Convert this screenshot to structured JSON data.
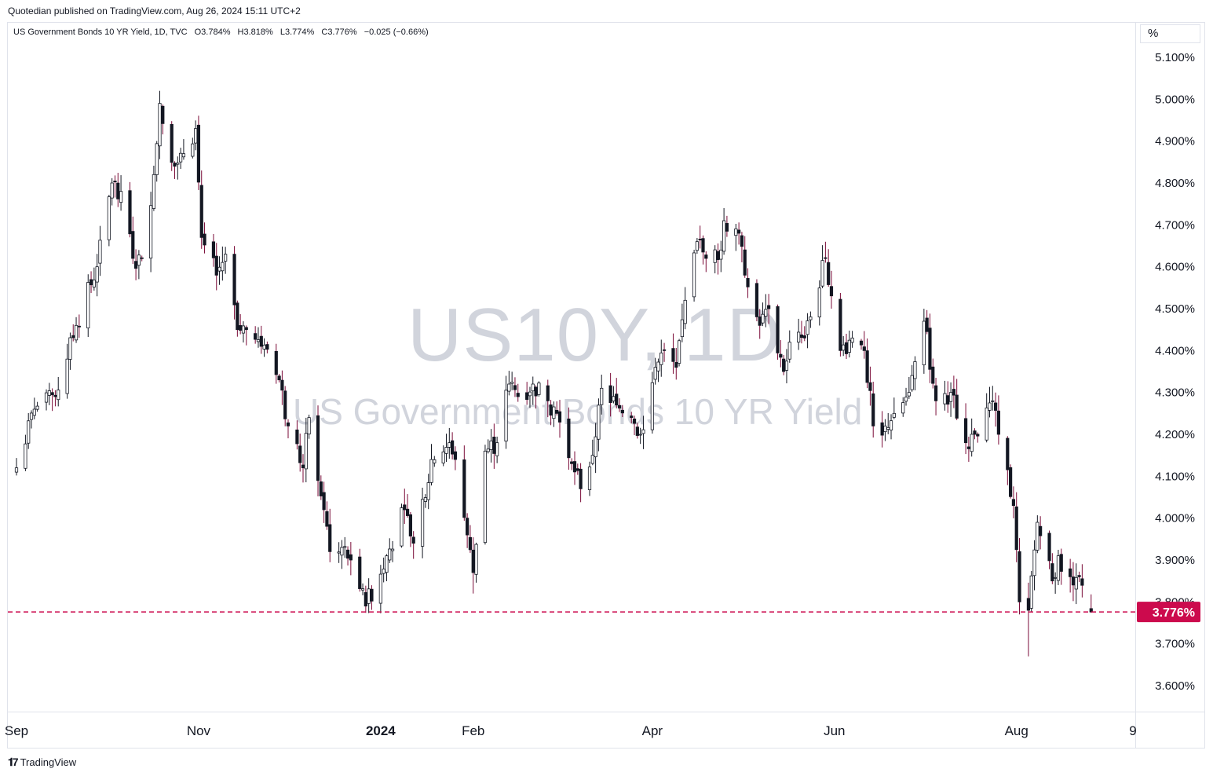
{
  "header": {
    "publisher": "Quotedian published on TradingView.com, Aug 26, 2024 15:11 UTC+2"
  },
  "legend": {
    "title": "US Government Bonds 10 YR Yield, 1D, TVC",
    "open": "O3.784%",
    "high": "H3.818%",
    "low": "L3.774%",
    "close": "C3.776%",
    "change": "−0.025 (−0.66%)"
  },
  "watermark": {
    "symbol": "US10Y, 1D",
    "name": "US Government Bonds 10 YR Yield"
  },
  "price_scale": {
    "unit": "%"
  },
  "footer": {
    "brand": "TradingView",
    "brand_icon": "tradingview-logo-icon"
  },
  "colors": {
    "up": "#ffffff",
    "down": "#7a0a37",
    "border": "#131722",
    "last_price": "#cc0a4d",
    "grid": "#e0e3eb"
  },
  "chart_data": {
    "type": "candlestick",
    "symbol": "US10Y",
    "interval": "1D",
    "ylim": [
      3.55,
      5.15
    ],
    "y_ticks": [
      3.6,
      3.7,
      3.8,
      3.9,
      4.0,
      4.1,
      4.2,
      4.3,
      4.4,
      4.5,
      4.6,
      4.7,
      4.8,
      4.9,
      5.0,
      5.1
    ],
    "y_tick_labels": [
      "3.600%",
      "3.700%",
      "3.800%",
      "3.900%",
      "4.000%",
      "4.100%",
      "4.200%",
      "4.300%",
      "4.400%",
      "4.500%",
      "4.600%",
      "4.700%",
      "4.800%",
      "4.900%",
      "5.000%",
      "5.100%"
    ],
    "x_range": [
      "2023-08-31",
      "2024-09-10"
    ],
    "x_ticks": [
      {
        "date": "2023-09-01",
        "label": "Sep",
        "bold": false
      },
      {
        "date": "2023-11-01",
        "label": "Nov",
        "bold": false
      },
      {
        "date": "2024-01-01",
        "label": "2024",
        "bold": true
      },
      {
        "date": "2024-02-01",
        "label": "Feb",
        "bold": false
      },
      {
        "date": "2024-04-01",
        "label": "Apr",
        "bold": false
      },
      {
        "date": "2024-06-01",
        "label": "Jun",
        "bold": false
      },
      {
        "date": "2024-08-01",
        "label": "Aug",
        "bold": false
      },
      {
        "date": "2024-09-09",
        "label": "9",
        "bold": false
      }
    ],
    "last_price": {
      "value": 3.776,
      "label": "3.776%"
    },
    "anchors": [
      [
        "2023-09-01",
        4.12
      ],
      [
        "2023-09-07",
        4.26
      ],
      [
        "2023-09-14",
        4.29
      ],
      [
        "2023-09-21",
        4.46
      ],
      [
        "2023-09-28",
        4.6
      ],
      [
        "2023-10-03",
        4.8
      ],
      [
        "2023-10-06",
        4.78
      ],
      [
        "2023-10-10",
        4.62
      ],
      [
        "2023-10-13",
        4.62
      ],
      [
        "2023-10-17",
        4.82
      ],
      [
        "2023-10-19",
        4.99
      ],
      [
        "2023-10-24",
        4.84
      ],
      [
        "2023-10-27",
        4.87
      ],
      [
        "2023-10-31",
        4.93
      ],
      [
        "2023-11-02",
        4.67
      ],
      [
        "2023-11-07",
        4.58
      ],
      [
        "2023-11-10",
        4.63
      ],
      [
        "2023-11-14",
        4.45
      ],
      [
        "2023-11-17",
        4.45
      ],
      [
        "2023-11-22",
        4.41
      ],
      [
        "2023-11-28",
        4.33
      ],
      [
        "2023-12-01",
        4.22
      ],
      [
        "2023-12-06",
        4.12
      ],
      [
        "2023-12-08",
        4.24
      ],
      [
        "2023-12-13",
        4.02
      ],
      [
        "2023-12-15",
        3.92
      ],
      [
        "2023-12-19",
        3.93
      ],
      [
        "2023-12-22",
        3.9
      ],
      [
        "2023-12-27",
        3.79
      ],
      [
        "2024-01-03",
        3.91
      ],
      [
        "2024-01-09",
        4.02
      ],
      [
        "2024-01-12",
        3.94
      ],
      [
        "2024-01-18",
        4.14
      ],
      [
        "2024-01-24",
        4.18
      ],
      [
        "2024-01-26",
        4.14
      ],
      [
        "2024-02-01",
        3.87
      ],
      [
        "2024-02-05",
        4.16
      ],
      [
        "2024-02-09",
        4.18
      ],
      [
        "2024-02-13",
        4.32
      ],
      [
        "2024-02-16",
        4.29
      ],
      [
        "2024-02-21",
        4.32
      ],
      [
        "2024-02-26",
        4.28
      ],
      [
        "2024-02-29",
        4.25
      ],
      [
        "2024-03-05",
        4.13
      ],
      [
        "2024-03-08",
        4.07
      ],
      [
        "2024-03-12",
        4.15
      ],
      [
        "2024-03-15",
        4.31
      ],
      [
        "2024-03-20",
        4.27
      ],
      [
        "2024-03-25",
        4.24
      ],
      [
        "2024-03-28",
        4.2
      ],
      [
        "2024-04-02",
        4.36
      ],
      [
        "2024-04-05",
        4.4
      ],
      [
        "2024-04-09",
        4.36
      ],
      [
        "2024-04-12",
        4.52
      ],
      [
        "2024-04-16",
        4.66
      ],
      [
        "2024-04-19",
        4.62
      ],
      [
        "2024-04-24",
        4.64
      ],
      [
        "2024-04-25",
        4.71
      ],
      [
        "2024-04-30",
        4.68
      ],
      [
        "2024-05-02",
        4.58
      ],
      [
        "2024-05-07",
        4.46
      ],
      [
        "2024-05-10",
        4.5
      ],
      [
        "2024-05-15",
        4.35
      ],
      [
        "2024-05-17",
        4.42
      ],
      [
        "2024-05-22",
        4.43
      ],
      [
        "2024-05-29",
        4.62
      ],
      [
        "2024-06-03",
        4.4
      ],
      [
        "2024-06-07",
        4.43
      ],
      [
        "2024-06-11",
        4.4
      ],
      [
        "2024-06-14",
        4.22
      ],
      [
        "2024-06-18",
        4.22
      ],
      [
        "2024-06-21",
        4.25
      ],
      [
        "2024-06-26",
        4.3
      ],
      [
        "2024-07-01",
        4.47
      ],
      [
        "2024-07-05",
        4.28
      ],
      [
        "2024-07-10",
        4.3
      ],
      [
        "2024-07-15",
        4.18
      ],
      [
        "2024-07-18",
        4.2
      ],
      [
        "2024-07-24",
        4.28
      ],
      [
        "2024-07-26",
        4.2
      ],
      [
        "2024-07-31",
        4.03
      ],
      [
        "2024-08-02",
        3.8
      ],
      [
        "2024-08-05",
        3.78
      ],
      [
        "2024-08-08",
        3.99
      ],
      [
        "2024-08-13",
        3.85
      ],
      [
        "2024-08-15",
        3.91
      ],
      [
        "2024-08-19",
        3.86
      ],
      [
        "2024-08-22",
        3.86
      ],
      [
        "2024-08-26",
        3.776
      ]
    ]
  }
}
